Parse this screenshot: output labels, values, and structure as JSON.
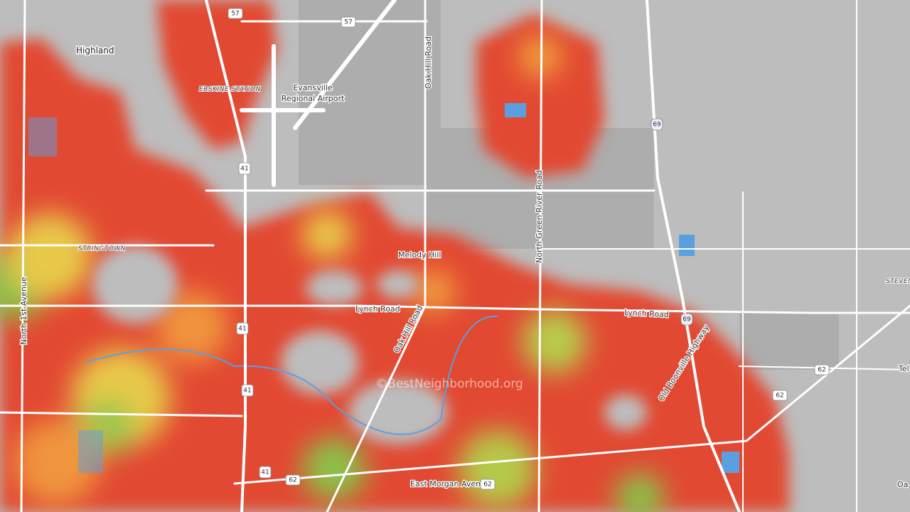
{
  "map": {
    "places": [
      "Highland",
      "ERSKINE STATION",
      "Evansville",
      "Regional Airport",
      "STRINGTOWN",
      "Melody Hill",
      "STEVEN"
    ],
    "roads": [
      "Oak Hill Road",
      "North Green River Road",
      "North 1st Avenue",
      "Lynch Road",
      "Lynch Road",
      "Oak Hill Road",
      "Old Boonville Highway",
      "East Morgan Avenue",
      "Tel",
      "Oa"
    ],
    "shields": [
      "57",
      "57",
      "41",
      "41",
      "41",
      "41",
      "69",
      "69",
      "62",
      "62",
      "62",
      "62"
    ],
    "watermark": "©BestNeighborhood.org"
  }
}
